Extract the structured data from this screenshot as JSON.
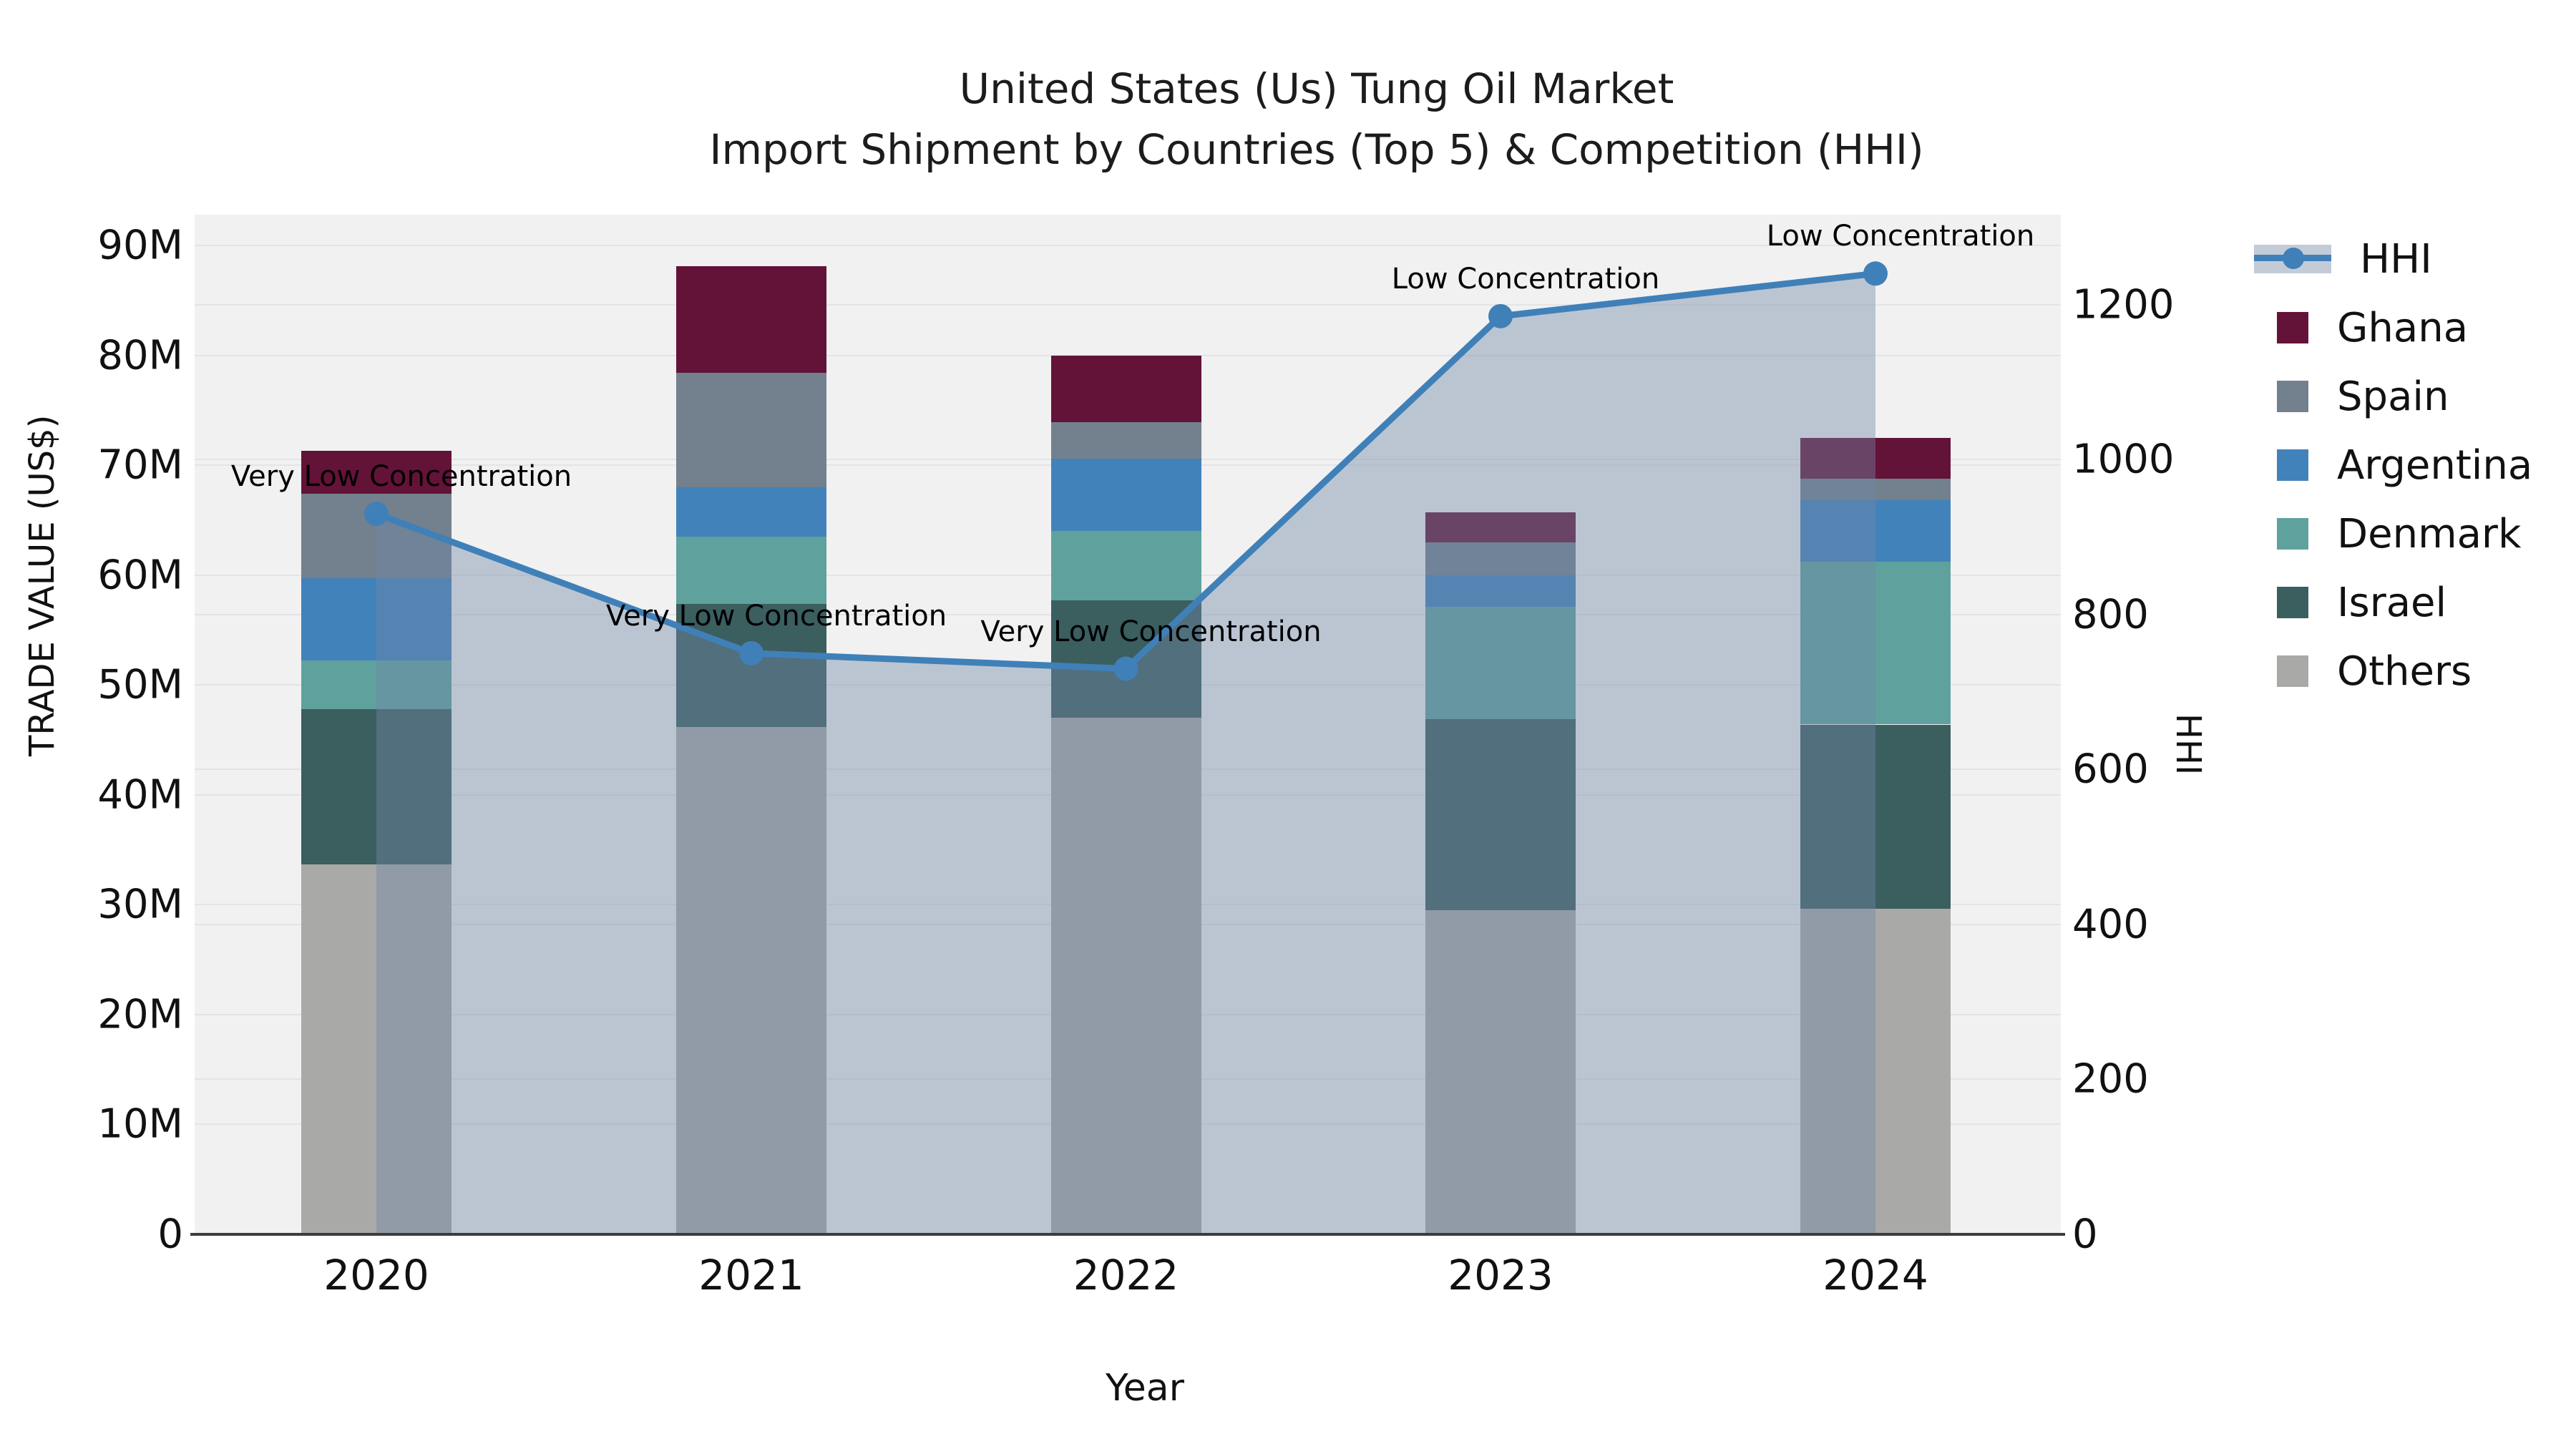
{
  "title": {
    "line1": "United States (Us) Tung Oil Market",
    "line2": "Import Shipment by Countries (Top 5) & Competition (HHI)"
  },
  "axes": {
    "y_left_title": "TRADE VALUE (US$)",
    "y_right_title": "HHI",
    "x_title": "Year",
    "y_left_tick_labels": [
      "0",
      "10M",
      "20M",
      "30M",
      "40M",
      "50M",
      "60M",
      "70M",
      "80M",
      "90M"
    ],
    "y_right_tick_labels": [
      "0",
      "200",
      "400",
      "600",
      "800",
      "1000",
      "1200"
    ]
  },
  "legend": {
    "hhi_label": "HHI",
    "hhi_line_color": "#4080b8",
    "hhi_band_color": "#c3cbd7"
  },
  "colors": {
    "plot_background": "#f1f1f2",
    "gridline": "#e3e4e6",
    "axis_line": "#3c3c3c",
    "hhi_line": "#4080b8",
    "hhi_area_fill": "rgba(112,136,166,0.42)"
  },
  "chart_data": {
    "type": "bar",
    "subtype": "stacked-bars-with-line-overlay",
    "categories": [
      "2020",
      "2021",
      "2022",
      "2023",
      "2024"
    ],
    "bar_units": "US$ millions",
    "bar_series": [
      {
        "name": "Ghana",
        "color": "#641338",
        "values": [
          3.9,
          9.7,
          6.1,
          2.7,
          3.7
        ]
      },
      {
        "name": "Spain",
        "color": "#73808e",
        "values": [
          7.7,
          10.4,
          3.3,
          3.0,
          2.0
        ]
      },
      {
        "name": "Argentina",
        "color": "#4282ba",
        "values": [
          7.5,
          4.5,
          6.6,
          2.9,
          5.6
        ]
      },
      {
        "name": "Denmark",
        "color": "#5fa19d",
        "values": [
          4.4,
          6.1,
          6.3,
          10.2,
          14.8
        ]
      },
      {
        "name": "Israel",
        "color": "#3b5e5f",
        "values": [
          14.1,
          11.2,
          10.7,
          17.4,
          16.8
        ]
      },
      {
        "name": "Others",
        "color": "#a9a9a7",
        "values": [
          33.7,
          46.2,
          47.0,
          29.5,
          29.6
        ]
      }
    ],
    "bar_totals": [
      71.3,
      88.1,
      80.0,
      65.7,
      72.5
    ],
    "stacking_order_bottom_to_top": [
      "Others",
      "Israel",
      "Denmark",
      "Argentina",
      "Spain",
      "Ghana"
    ],
    "line_series": {
      "name": "HHI",
      "axis": "right",
      "values": [
        930,
        750,
        730,
        1185,
        1240
      ],
      "color": "#4080b8",
      "area_fill": "rgba(112,136,166,0.42)",
      "markers": true
    },
    "annotations": [
      {
        "category": "2020",
        "text": "Very Low Concentration"
      },
      {
        "category": "2021",
        "text": "Very Low Concentration"
      },
      {
        "category": "2022",
        "text": "Very Low Concentration"
      },
      {
        "category": "2023",
        "text": "Low Concentration"
      },
      {
        "category": "2024",
        "text": "Low Concentration"
      }
    ],
    "title": "United States (Us) Tung Oil Market — Import Shipment by Countries (Top 5) & Competition (HHI)",
    "xlabel": "Year",
    "ylabel_left": "TRADE VALUE (US$)",
    "ylabel_right": "HHI",
    "ylim_left": [
      0,
      92.8
    ],
    "ylim_right": [
      0,
      1316
    ],
    "y_left_ticks": [
      0,
      10,
      20,
      30,
      40,
      50,
      60,
      70,
      80,
      90
    ],
    "y_right_ticks": [
      0,
      200,
      400,
      600,
      800,
      1000,
      1200
    ],
    "grid": true,
    "legend_position": "right"
  }
}
